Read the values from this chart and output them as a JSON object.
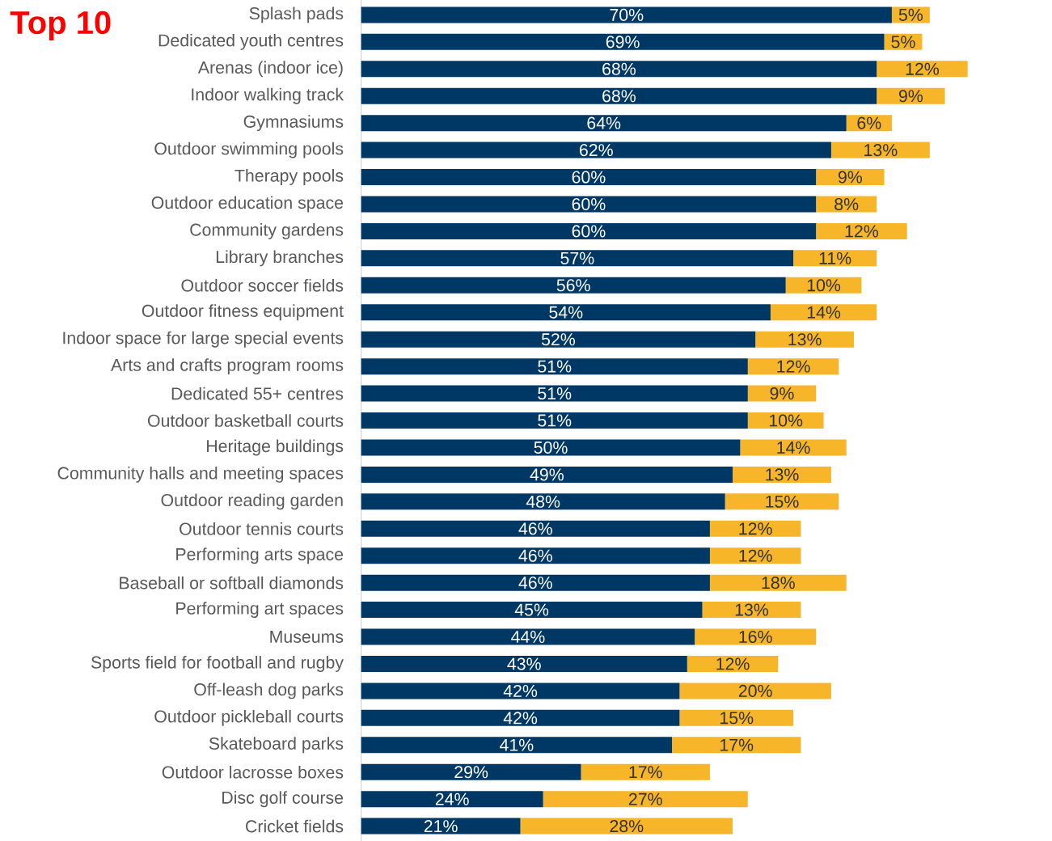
{
  "chart_data": {
    "type": "bar",
    "orientation": "horizontal",
    "stacked": true,
    "annotations": [
      "Top 10"
    ],
    "categories": [
      "Splash pads",
      "Dedicated youth centres",
      "Arenas (indoor ice)",
      "Indoor walking track",
      "Gymnasiums",
      "Outdoor swimming pools",
      "Therapy pools",
      "Outdoor education space",
      "Community gardens",
      "Library branches",
      "Outdoor soccer fields",
      "Outdoor fitness equipment",
      "Indoor space for large special events",
      "Arts and crafts program rooms",
      "Dedicated 55+ centres",
      "Outdoor basketball courts",
      "Heritage buildings",
      "Community halls and meeting spaces",
      "Outdoor reading garden",
      "Outdoor tennis courts",
      "Performing arts space",
      "Baseball or softball diamonds",
      "Performing art spaces",
      "Museums",
      "Sports field for football and rugby",
      "Off-leash dog parks",
      "Outdoor pickleball courts",
      "Skateboard parks",
      "Outdoor lacrosse boxes",
      "Disc golf course",
      "Cricket fields"
    ],
    "series": [
      {
        "color": "#003865",
        "values": [
          70,
          69,
          68,
          68,
          64,
          62,
          60,
          60,
          60,
          57,
          56,
          54,
          52,
          51,
          51,
          51,
          50,
          49,
          48,
          46,
          46,
          46,
          45,
          44,
          43,
          42,
          42,
          41,
          29,
          24,
          21
        ],
        "value_labels": [
          "70%",
          "69%",
          "68%",
          "68%",
          "64%",
          "62%",
          "60%",
          "60%",
          "60%",
          "57%",
          "56%",
          "54%",
          "52%",
          "51%",
          "51%",
          "51%",
          "50%",
          "49%",
          "48%",
          "46%",
          "46%",
          "46%",
          "45%",
          "44%",
          "43%",
          "42%",
          "42%",
          "41%",
          "29%",
          "24%",
          "21%"
        ]
      },
      {
        "color": "#f7b52a",
        "values": [
          5,
          5,
          12,
          9,
          6,
          13,
          9,
          8,
          12,
          11,
          10,
          14,
          13,
          12,
          9,
          10,
          14,
          13,
          15,
          12,
          12,
          18,
          13,
          16,
          12,
          20,
          15,
          17,
          17,
          27,
          28
        ],
        "value_labels": [
          "5%",
          "5%",
          "12%",
          "9%",
          "6%",
          "13%",
          "9%",
          "8%",
          "12%",
          "11%",
          "10%",
          "14%",
          "13%",
          "12%",
          "9%",
          "10%",
          "14%",
          "13%",
          "15%",
          "12%",
          "12%",
          "18%",
          "13%",
          "16%",
          "12%",
          "20%",
          "15%",
          "17%",
          "17%",
          "27%",
          "28%"
        ]
      }
    ]
  }
}
